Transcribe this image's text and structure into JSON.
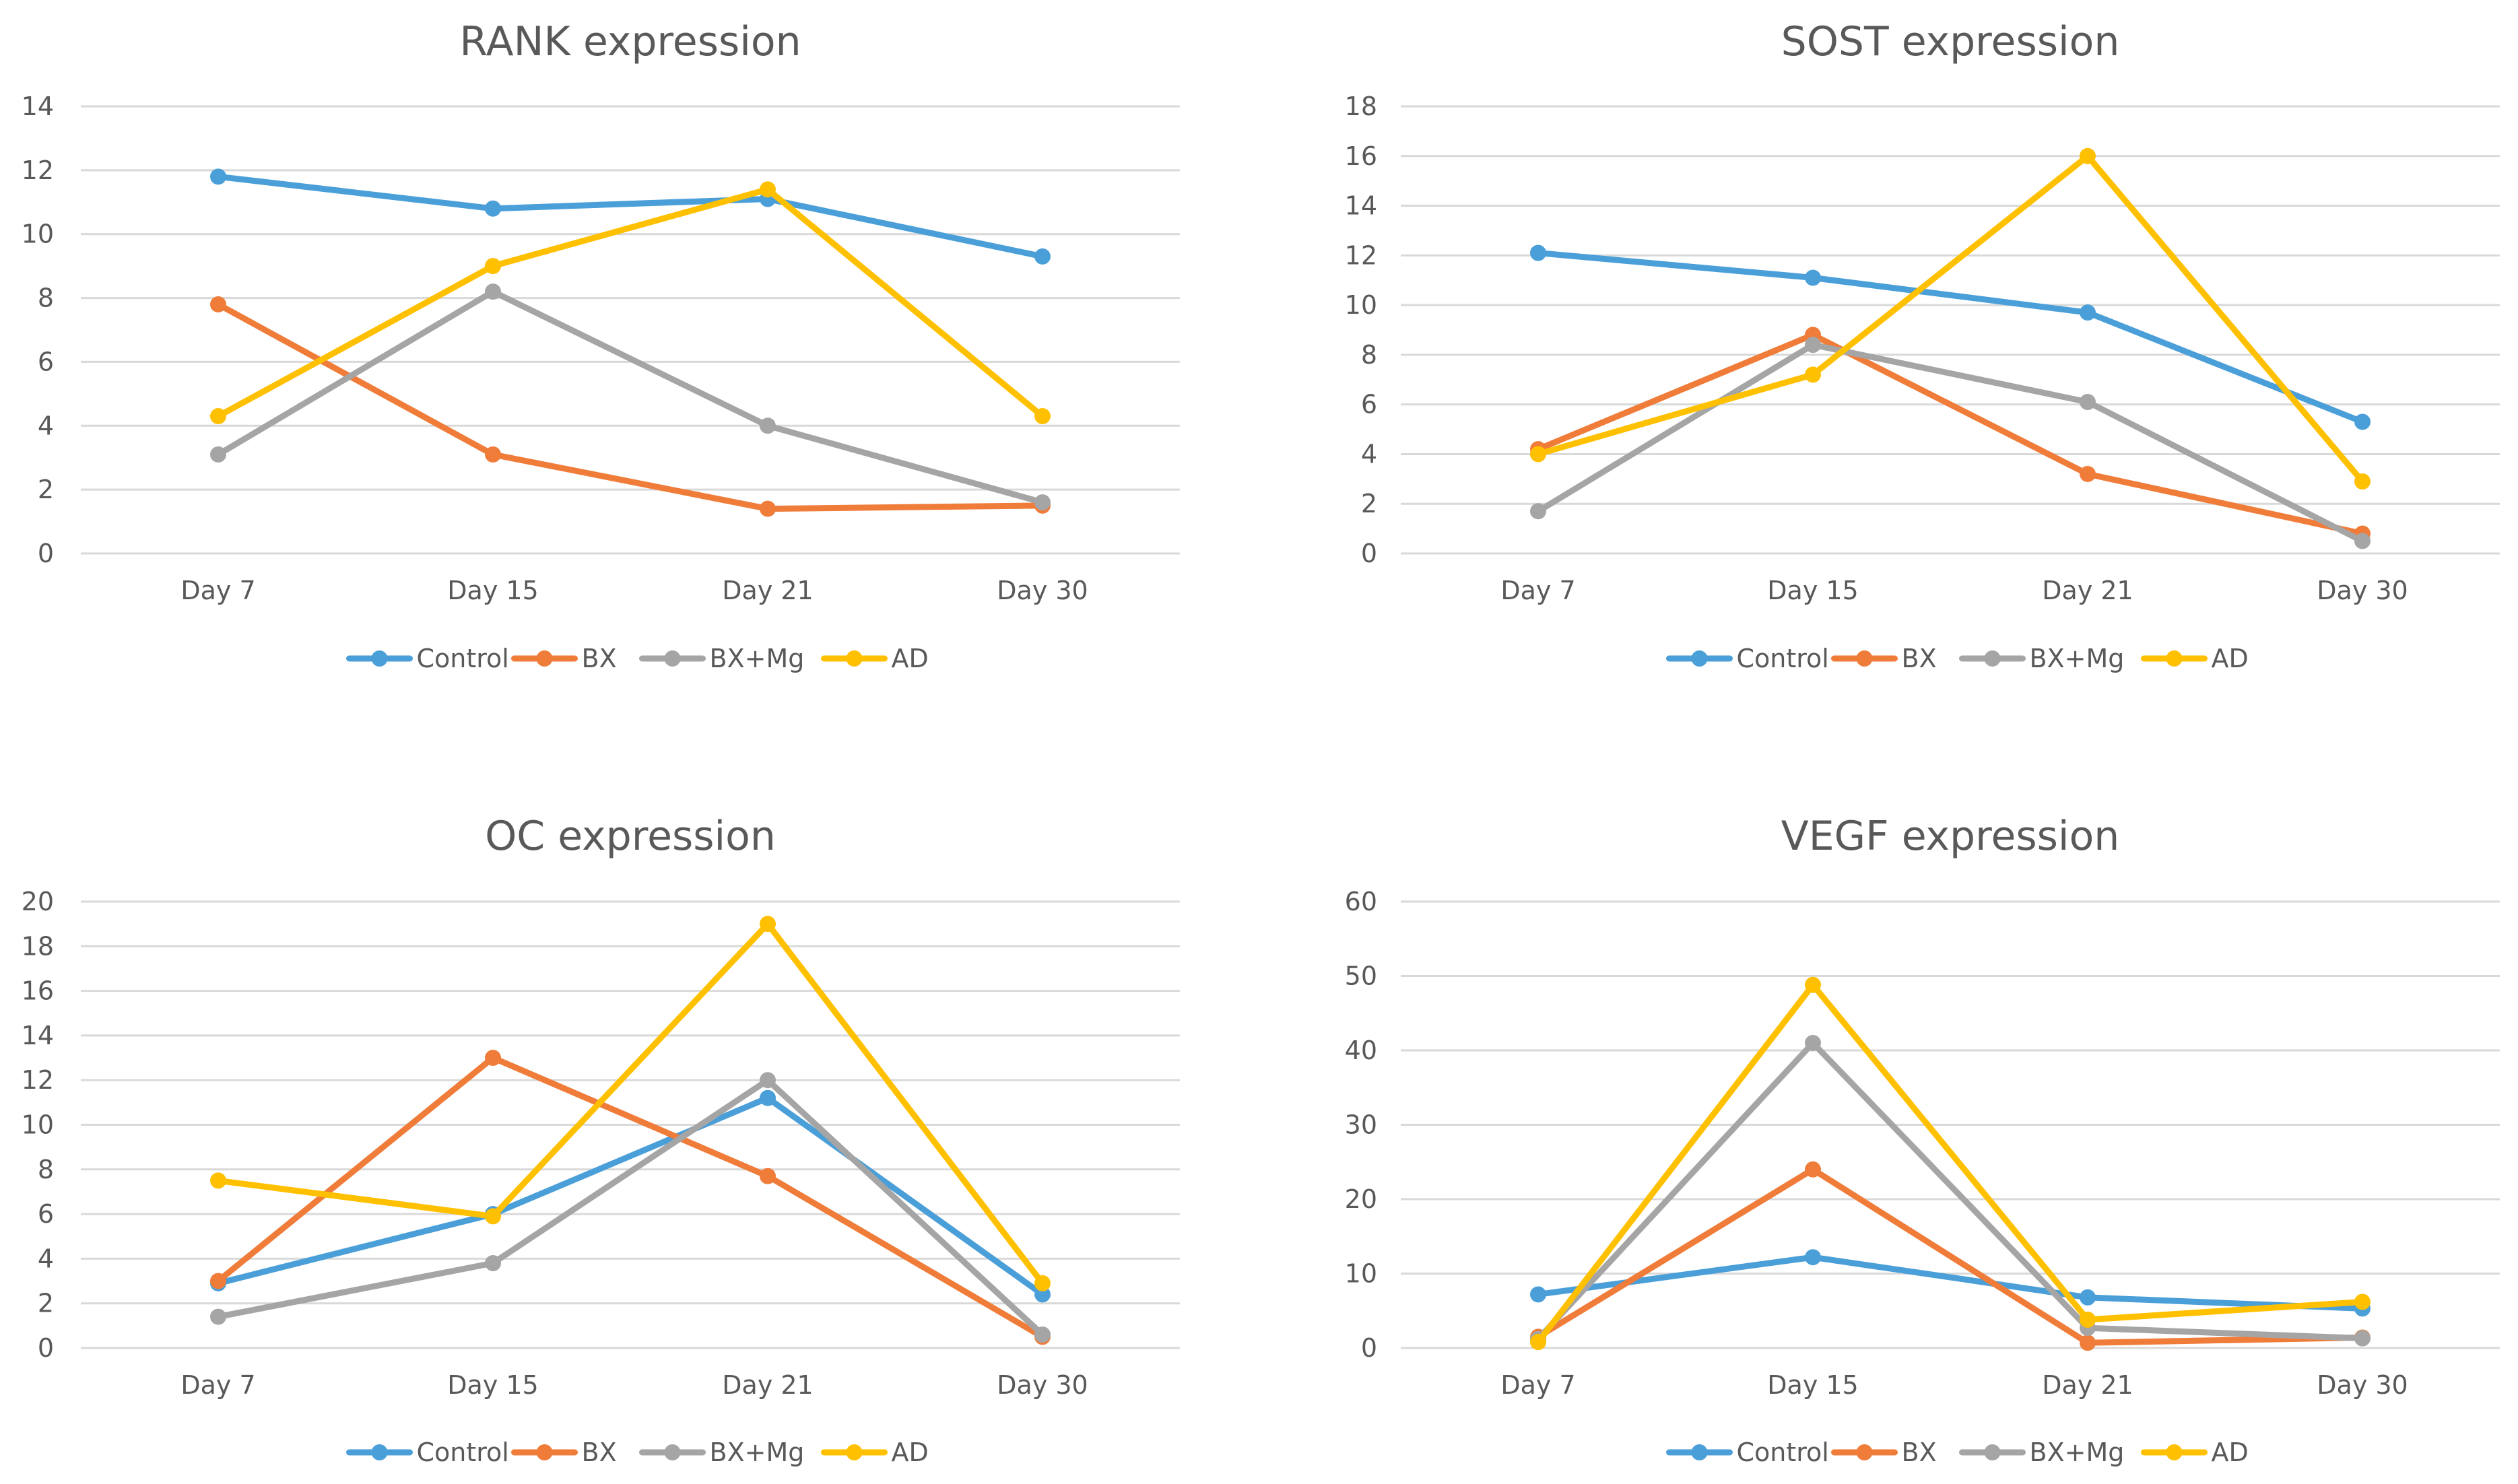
{
  "chart_data": [
    {
      "type": "line",
      "title": "RANK expression",
      "categories": [
        "Day 7",
        "Day 15",
        "Day 21",
        "Day 30"
      ],
      "ylim": [
        0,
        14
      ],
      "yticks": [
        0,
        2,
        4,
        6,
        8,
        10,
        12,
        14
      ],
      "grid": true,
      "legend": "bottom",
      "series": [
        {
          "name": "Control",
          "color": "#4A9FD8",
          "values": [
            11.8,
            10.8,
            11.1,
            9.3
          ]
        },
        {
          "name": "BX",
          "color": "#F07C3A",
          "values": [
            7.8,
            3.1,
            1.4,
            1.5
          ]
        },
        {
          "name": "BX+Mg",
          "color": "#A5A5A5",
          "values": [
            3.1,
            8.2,
            4.0,
            1.6
          ]
        },
        {
          "name": "AD",
          "color": "#FFC000",
          "values": [
            4.3,
            9.0,
            11.4,
            4.3
          ]
        }
      ]
    },
    {
      "type": "line",
      "title": "SOST expression",
      "categories": [
        "Day 7",
        "Day 15",
        "Day 21",
        "Day 30"
      ],
      "ylim": [
        0,
        18
      ],
      "yticks": [
        0,
        2,
        4,
        6,
        8,
        10,
        12,
        14,
        16,
        18
      ],
      "grid": true,
      "legend": "bottom",
      "series": [
        {
          "name": "Control",
          "color": "#4A9FD8",
          "values": [
            12.1,
            11.1,
            9.7,
            5.3
          ]
        },
        {
          "name": "BX",
          "color": "#F07C3A",
          "values": [
            4.2,
            8.8,
            3.2,
            0.8
          ]
        },
        {
          "name": "BX+Mg",
          "color": "#A5A5A5",
          "values": [
            1.7,
            8.4,
            6.1,
            0.5
          ]
        },
        {
          "name": "AD",
          "color": "#FFC000",
          "values": [
            4.0,
            7.2,
            16.0,
            2.9
          ]
        }
      ]
    },
    {
      "type": "line",
      "title": "OC expression",
      "categories": [
        "Day 7",
        "Day 15",
        "Day 21",
        "Day 30"
      ],
      "ylim": [
        0,
        20
      ],
      "yticks": [
        0,
        2,
        4,
        6,
        8,
        10,
        12,
        14,
        16,
        18,
        20
      ],
      "grid": true,
      "legend": "bottom",
      "series": [
        {
          "name": "Control",
          "color": "#4A9FD8",
          "values": [
            2.9,
            6.0,
            11.2,
            2.4
          ]
        },
        {
          "name": "BX",
          "color": "#F07C3A",
          "values": [
            3.0,
            13.0,
            7.7,
            0.5
          ]
        },
        {
          "name": "BX+Mg",
          "color": "#A5A5A5",
          "values": [
            1.4,
            3.8,
            12.0,
            0.6
          ]
        },
        {
          "name": "AD",
          "color": "#FFC000",
          "values": [
            7.5,
            5.9,
            19.0,
            2.9
          ]
        }
      ]
    },
    {
      "type": "line",
      "title": "VEGF expression",
      "categories": [
        "Day 7",
        "Day 15",
        "Day 21",
        "Day 30"
      ],
      "ylim": [
        0,
        60
      ],
      "yticks": [
        0,
        10,
        20,
        30,
        40,
        50,
        60
      ],
      "grid": true,
      "legend": "bottom",
      "series": [
        {
          "name": "Control",
          "color": "#4A9FD8",
          "values": [
            7.2,
            12.2,
            6.8,
            5.3
          ]
        },
        {
          "name": "BX",
          "color": "#F07C3A",
          "values": [
            1.5,
            24.0,
            0.7,
            1.4
          ]
        },
        {
          "name": "BX+Mg",
          "color": "#A5A5A5",
          "values": [
            1.2,
            41.0,
            2.7,
            1.3
          ]
        },
        {
          "name": "AD",
          "color": "#FFC000",
          "values": [
            0.8,
            48.8,
            3.8,
            6.2
          ]
        }
      ]
    }
  ]
}
